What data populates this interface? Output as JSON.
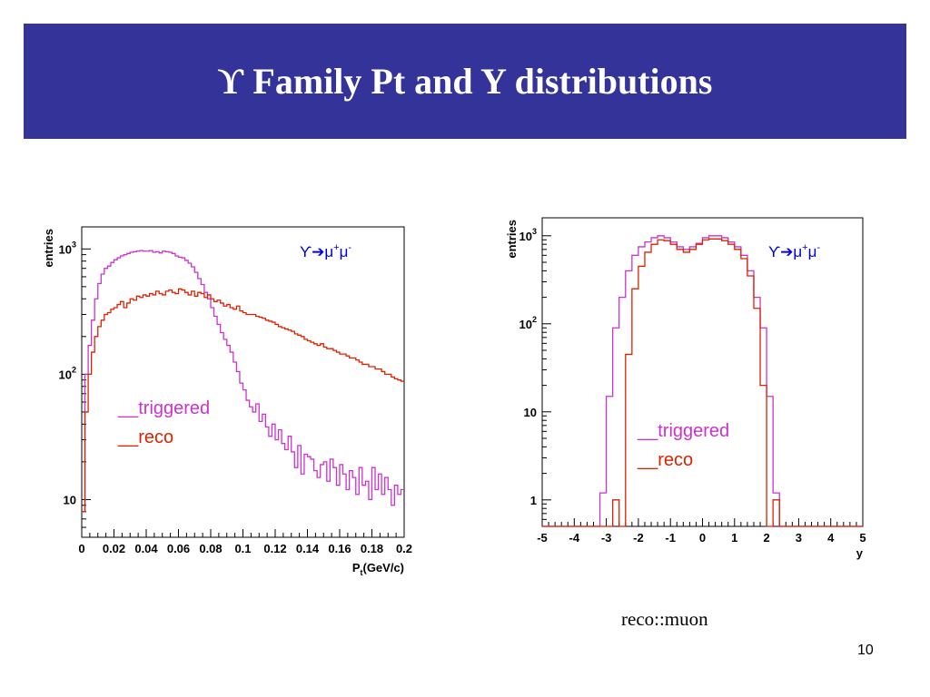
{
  "slide": {
    "title": "ϒ Family Pt and Y distributions",
    "caption": "reco::muon",
    "page_number": "10"
  },
  "chart_data": [
    {
      "type": "line",
      "ylabel": "entries",
      "xlabel": "P",
      "xlabel_sub": "t",
      "xlabel_tail": "(GeV/c)",
      "xlim": [
        0,
        0.2
      ],
      "ylim": [
        5,
        1500
      ],
      "yscale": "log",
      "x_ticks": [
        0,
        0.02,
        0.04,
        0.06,
        0.08,
        0.1,
        0.12,
        0.14,
        0.16,
        0.18,
        0.2
      ],
      "x_tick_labels": [
        "0",
        "0.02",
        "0.04",
        "0.06",
        "0.08",
        "0.1",
        "0.12",
        "0.14",
        "0.16",
        "0.18",
        "0.2"
      ],
      "y_ticks": [
        {
          "value": 10,
          "base": "10",
          "exp": ""
        },
        {
          "value": 100,
          "base": "10",
          "exp": "2"
        },
        {
          "value": 1000,
          "base": "10",
          "exp": "3"
        }
      ],
      "annotation": {
        "text": "ϒ➔μ",
        "sup1": "+",
        "mid": "μ",
        "sup2": "-"
      },
      "legend": {
        "triggered": "__triggered",
        "reco": "__reco",
        "position": "middle-left"
      },
      "colors": {
        "triggered": "#cc33cc",
        "reco": "#dd2200",
        "frame": "#000000"
      },
      "series": [
        {
          "name": "triggered",
          "x": [
            0,
            0.002,
            0.004,
            0.006,
            0.008,
            0.01,
            0.012,
            0.014,
            0.016,
            0.018,
            0.02,
            0.022,
            0.024,
            0.026,
            0.028,
            0.03,
            0.032,
            0.034,
            0.036,
            0.038,
            0.04,
            0.042,
            0.044,
            0.046,
            0.048,
            0.05,
            0.052,
            0.054,
            0.056,
            0.058,
            0.06,
            0.062,
            0.064,
            0.066,
            0.068,
            0.07,
            0.072,
            0.074,
            0.076,
            0.078,
            0.08,
            0.082,
            0.084,
            0.086,
            0.088,
            0.09,
            0.092,
            0.094,
            0.096,
            0.098,
            0.1,
            0.102,
            0.104,
            0.106,
            0.108,
            0.11,
            0.112,
            0.114,
            0.116,
            0.118,
            0.12,
            0.122,
            0.124,
            0.126,
            0.128,
            0.13,
            0.132,
            0.134,
            0.136,
            0.138,
            0.14,
            0.142,
            0.144,
            0.146,
            0.148,
            0.15,
            0.152,
            0.154,
            0.156,
            0.158,
            0.16,
            0.162,
            0.164,
            0.166,
            0.168,
            0.17,
            0.172,
            0.174,
            0.176,
            0.178,
            0.18,
            0.182,
            0.184,
            0.186,
            0.188,
            0.19,
            0.192,
            0.194,
            0.196,
            0.198
          ],
          "y": [
            8,
            100,
            170,
            270,
            400,
            530,
            630,
            700,
            730,
            780,
            820,
            850,
            880,
            900,
            920,
            940,
            950,
            960,
            970,
            960,
            960,
            970,
            940,
            950,
            930,
            960,
            950,
            940,
            920,
            880,
            860,
            850,
            810,
            770,
            720,
            650,
            580,
            520,
            450,
            400,
            340,
            290,
            250,
            215,
            190,
            170,
            150,
            125,
            105,
            85,
            75,
            62,
            55,
            50,
            58,
            42,
            48,
            38,
            32,
            40,
            30,
            36,
            28,
            25,
            32,
            24,
            18,
            27,
            16,
            23,
            22,
            21,
            17,
            15,
            19,
            20,
            14,
            21,
            18,
            13,
            19,
            16,
            12,
            17,
            15,
            11,
            18,
            13,
            14,
            10,
            18,
            12,
            16,
            11,
            15,
            12,
            9,
            13,
            11,
            12
          ]
        },
        {
          "name": "reco",
          "x": [
            0,
            0.002,
            0.004,
            0.006,
            0.008,
            0.01,
            0.012,
            0.014,
            0.016,
            0.018,
            0.02,
            0.022,
            0.024,
            0.026,
            0.028,
            0.03,
            0.032,
            0.034,
            0.036,
            0.038,
            0.04,
            0.042,
            0.044,
            0.046,
            0.048,
            0.05,
            0.052,
            0.054,
            0.056,
            0.058,
            0.06,
            0.062,
            0.064,
            0.066,
            0.068,
            0.07,
            0.072,
            0.074,
            0.076,
            0.078,
            0.08,
            0.082,
            0.084,
            0.086,
            0.088,
            0.09,
            0.092,
            0.094,
            0.096,
            0.098,
            0.1,
            0.102,
            0.104,
            0.106,
            0.108,
            0.11,
            0.112,
            0.114,
            0.116,
            0.118,
            0.12,
            0.122,
            0.124,
            0.126,
            0.128,
            0.13,
            0.132,
            0.134,
            0.136,
            0.138,
            0.14,
            0.142,
            0.144,
            0.146,
            0.148,
            0.15,
            0.152,
            0.154,
            0.156,
            0.158,
            0.16,
            0.162,
            0.164,
            0.166,
            0.168,
            0.17,
            0.172,
            0.174,
            0.176,
            0.178,
            0.18,
            0.182,
            0.184,
            0.186,
            0.188,
            0.19,
            0.192,
            0.194,
            0.196,
            0.198
          ],
          "y": [
            8,
            50,
            100,
            150,
            200,
            240,
            270,
            300,
            310,
            330,
            340,
            360,
            380,
            340,
            370,
            400,
            390,
            420,
            410,
            430,
            420,
            440,
            430,
            460,
            440,
            430,
            460,
            470,
            450,
            440,
            480,
            470,
            450,
            430,
            460,
            420,
            450,
            440,
            410,
            430,
            400,
            380,
            390,
            370,
            350,
            360,
            340,
            330,
            350,
            320,
            310,
            300,
            300,
            300,
            290,
            285,
            280,
            270,
            265,
            260,
            250,
            240,
            235,
            230,
            225,
            220,
            210,
            205,
            200,
            190,
            185,
            180,
            175,
            170,
            175,
            165,
            160,
            160,
            155,
            150,
            145,
            145,
            140,
            135,
            135,
            130,
            125,
            120,
            120,
            115,
            115,
            110,
            110,
            105,
            100,
            100,
            95,
            92,
            90,
            88
          ]
        }
      ]
    },
    {
      "type": "line",
      "ylabel": "entries",
      "xlabel": "y",
      "xlim": [
        -5,
        5
      ],
      "ylim": [
        0.5,
        1600
      ],
      "yscale": "log",
      "x_ticks": [
        -5,
        -4,
        -3,
        -2,
        -1,
        0,
        1,
        2,
        3,
        4,
        5
      ],
      "x_tick_labels": [
        "-5",
        "-4",
        "-3",
        "-2",
        "-1",
        "0",
        "1",
        "2",
        "3",
        "4",
        "5"
      ],
      "y_ticks": [
        {
          "value": 1,
          "base": "1",
          "exp": ""
        },
        {
          "value": 10,
          "base": "10",
          "exp": ""
        },
        {
          "value": 100,
          "base": "10",
          "exp": "2"
        },
        {
          "value": 1000,
          "base": "10",
          "exp": "3"
        }
      ],
      "annotation": {
        "text": "ϒ➔μ",
        "sup1": "+",
        "mid": "μ",
        "sup2": "-"
      },
      "legend": {
        "triggered": "__triggered",
        "reco": "__reco",
        "position": "middle-right"
      },
      "colors": {
        "triggered": "#cc33cc",
        "reco": "#dd2200",
        "frame": "#000000"
      },
      "series": [
        {
          "name": "triggered",
          "x": [
            -5,
            -4.8,
            -4.6,
            -4.4,
            -4.2,
            -4,
            -3.8,
            -3.6,
            -3.4,
            -3.2,
            -3,
            -2.8,
            -2.6,
            -2.4,
            -2.2,
            -2,
            -1.8,
            -1.6,
            -1.4,
            -1.2,
            -1,
            -0.8,
            -0.6,
            -0.4,
            -0.2,
            0,
            0.2,
            0.4,
            0.6,
            0.8,
            1,
            1.2,
            1.4,
            1.6,
            1.8,
            2,
            2.2,
            2.4,
            2.6,
            2.8,
            3,
            3.2,
            3.4,
            3.6,
            3.8,
            4,
            4.2,
            4.4,
            4.6,
            4.8
          ],
          "y": [
            0.5,
            0.5,
            0.5,
            0.5,
            0.5,
            0.5,
            0.5,
            0.5,
            0.5,
            1.2,
            15,
            90,
            200,
            400,
            600,
            750,
            850,
            950,
            1000,
            950,
            850,
            750,
            700,
            750,
            820,
            950,
            1000,
            1000,
            950,
            850,
            750,
            600,
            400,
            200,
            90,
            15,
            1.2,
            0.5,
            0.5,
            0.5,
            0.5,
            0.5,
            0.5,
            0.5,
            0.5,
            0.5,
            0.5,
            0.5,
            0.5,
            0.5
          ]
        },
        {
          "name": "reco",
          "x": [
            -5,
            -4.8,
            -4.6,
            -4.4,
            -4.2,
            -4,
            -3.8,
            -3.6,
            -3.4,
            -3.2,
            -3,
            -2.8,
            -2.6,
            -2.4,
            -2.2,
            -2,
            -1.8,
            -1.6,
            -1.4,
            -1.2,
            -1,
            -0.8,
            -0.6,
            -0.4,
            -0.2,
            0,
            0.2,
            0.4,
            0.6,
            0.8,
            1,
            1.2,
            1.4,
            1.6,
            1.8,
            2,
            2.2,
            2.4,
            2.6,
            2.8,
            3,
            3.2,
            3.4,
            3.6,
            3.8,
            4,
            4.2,
            4.4,
            4.6,
            4.8
          ],
          "y": [
            0.5,
            0.5,
            0.5,
            0.5,
            0.5,
            0.5,
            0.5,
            0.5,
            0.5,
            0.5,
            0.5,
            1,
            0.5,
            45,
            250,
            450,
            650,
            800,
            900,
            880,
            800,
            700,
            650,
            700,
            800,
            900,
            920,
            920,
            880,
            800,
            700,
            550,
            350,
            150,
            20,
            0.5,
            1,
            0.5,
            0.5,
            0.5,
            0.5,
            0.5,
            0.5,
            0.5,
            0.5,
            0.5,
            0.5,
            0.5,
            0.5,
            0.5
          ]
        }
      ]
    }
  ]
}
